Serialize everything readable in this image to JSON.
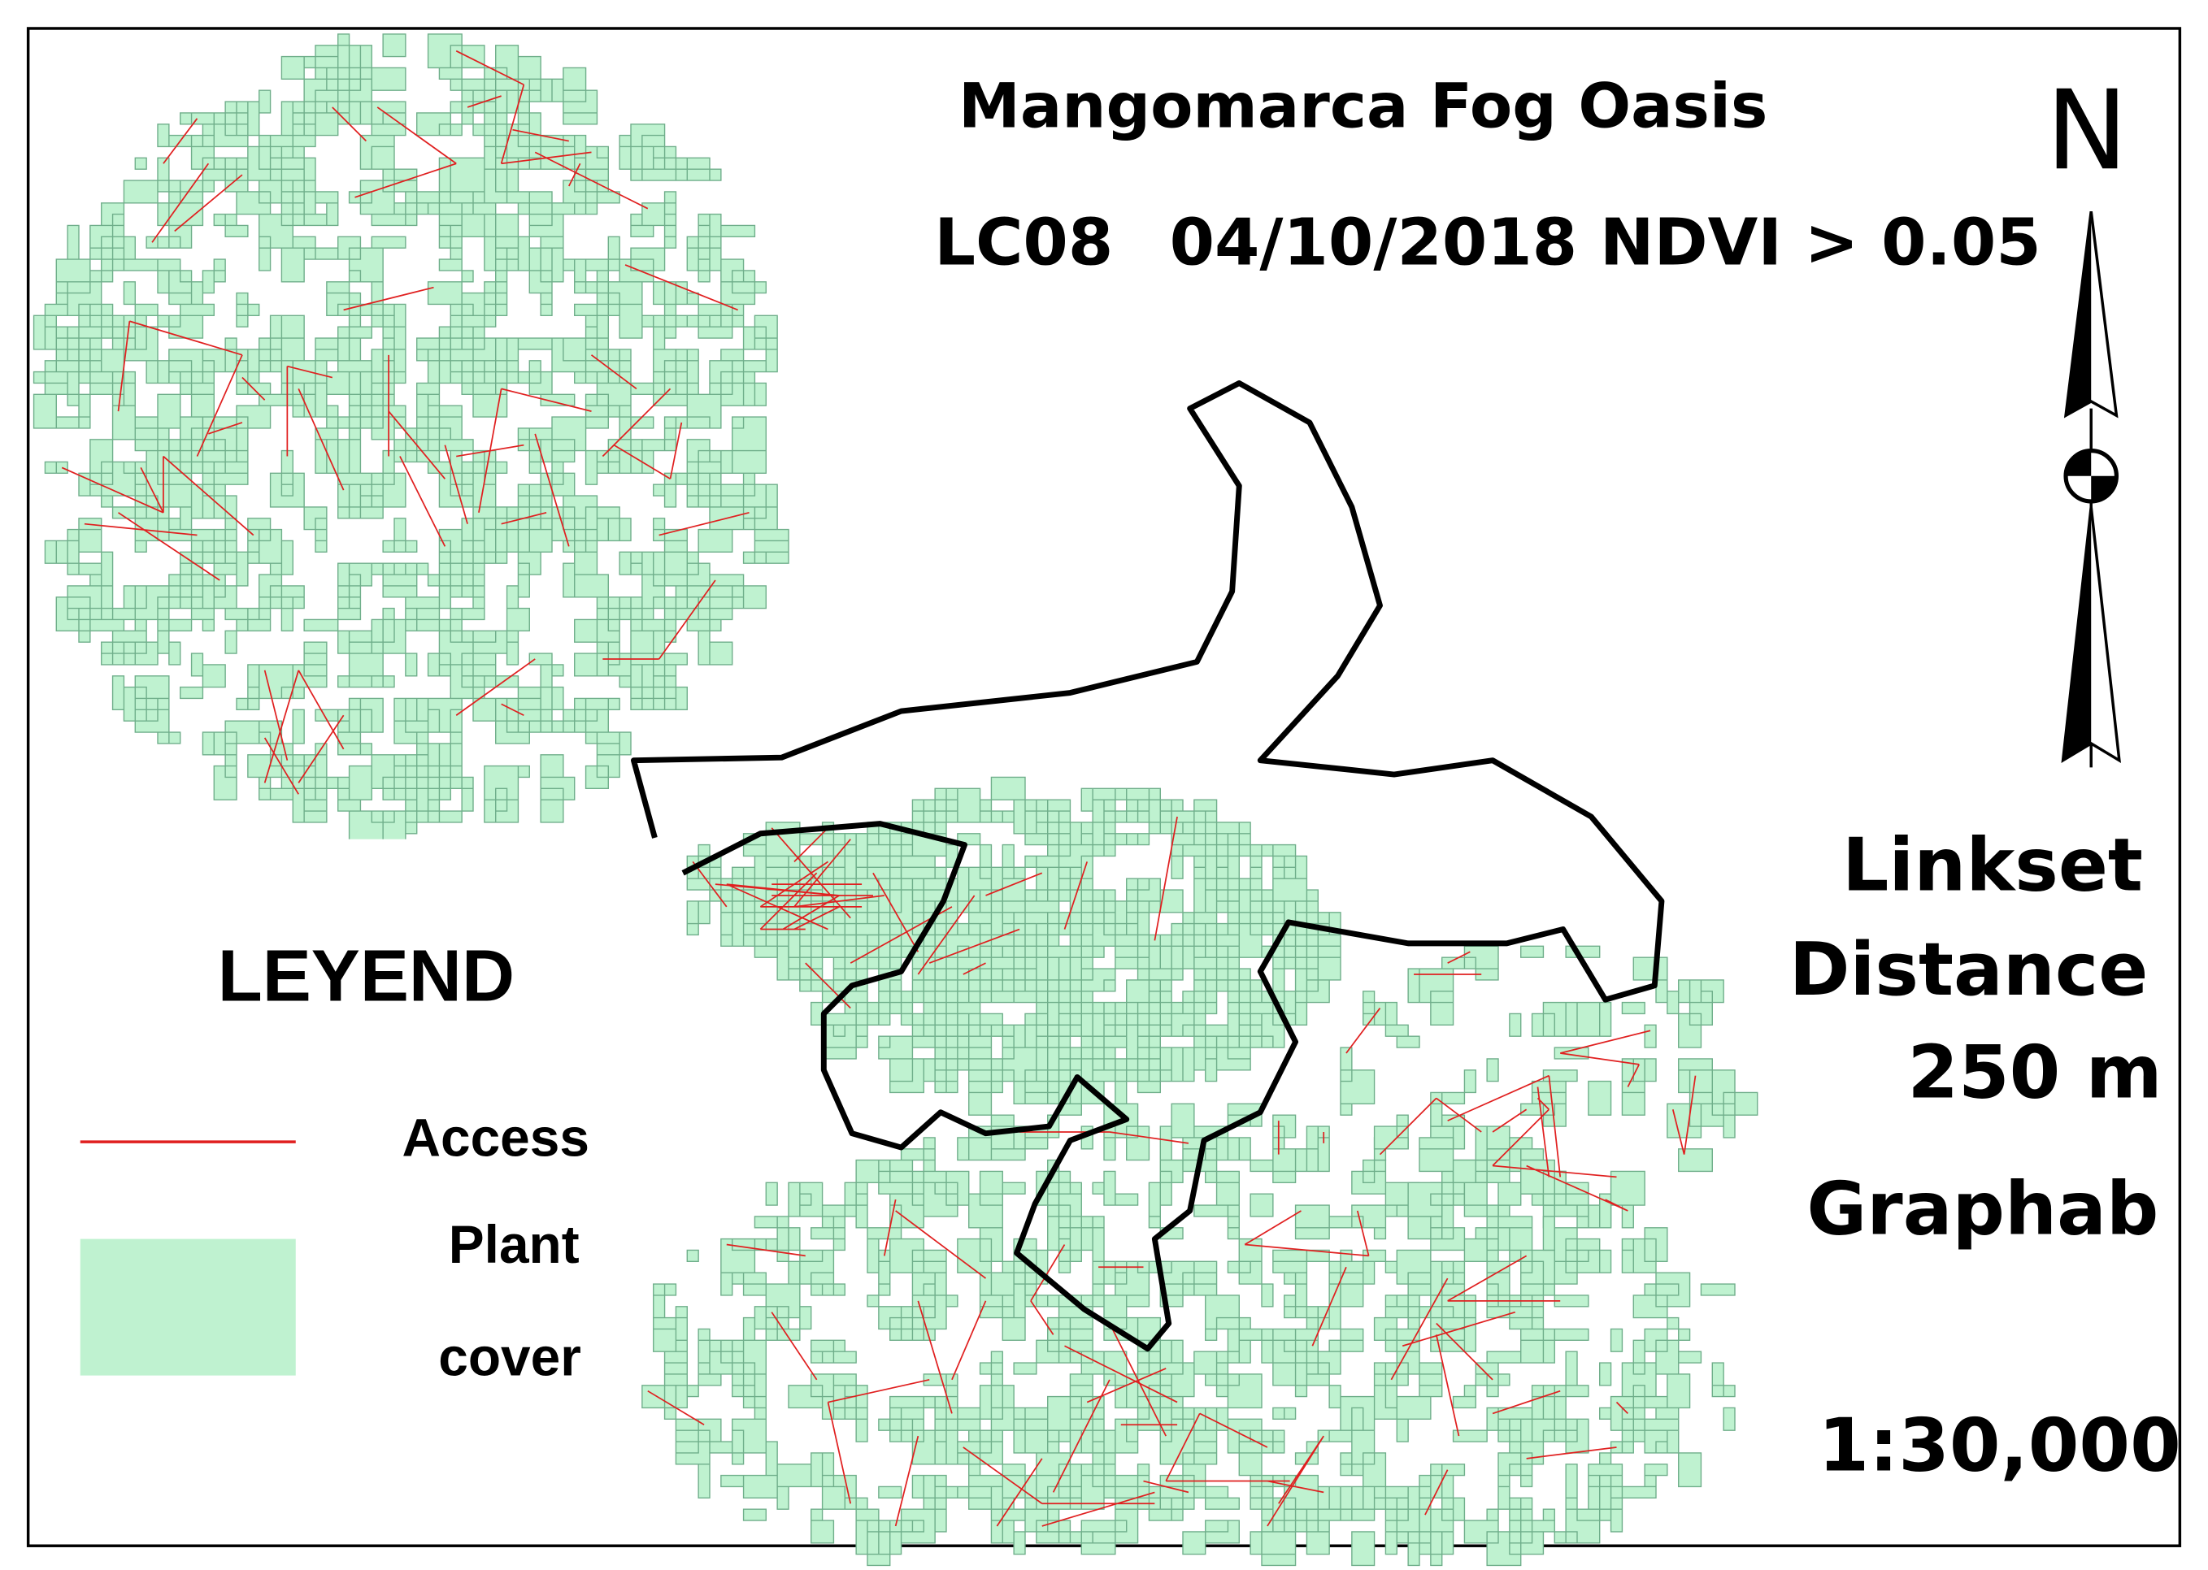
{
  "title": "Mangomarca Fog Oasis",
  "subtitle": {
    "sensor": "LC08",
    "date_ndvi": "04/10/2018 NDVI > 0.05"
  },
  "north": "N",
  "info": [
    "Linkset",
    "Distance",
    "250 m",
    "Graphab"
  ],
  "scale": "1:30,000",
  "legend": {
    "title": "LEYEND",
    "items": [
      {
        "label": "Access"
      },
      {
        "label": [
          "Plant",
          "cover"
        ]
      }
    ]
  }
}
